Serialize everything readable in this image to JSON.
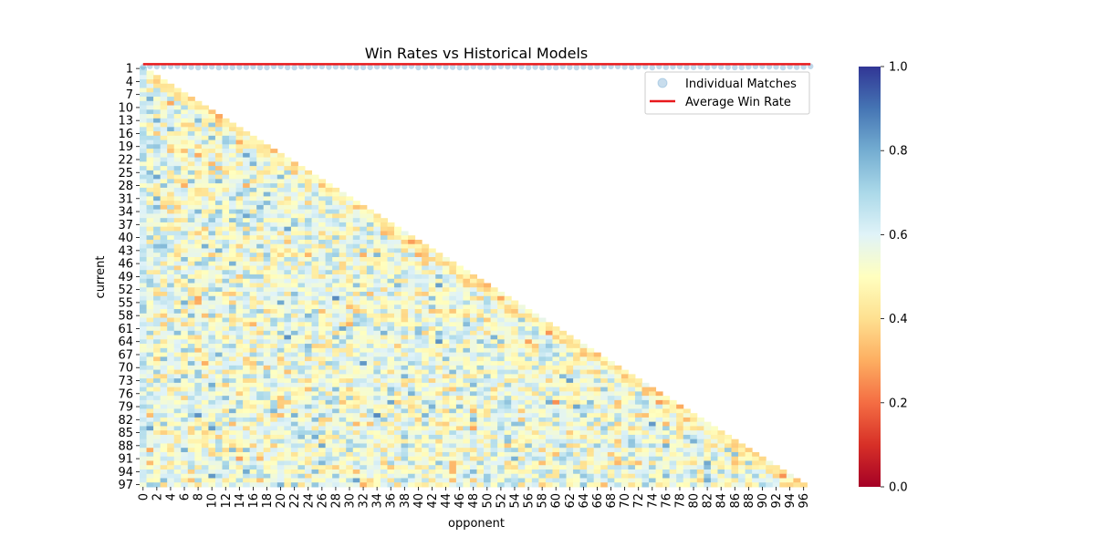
{
  "chart_data": {
    "type": "heatmap",
    "title": "Win Rates vs Historical Models",
    "xlabel": "opponent",
    "ylabel": "current",
    "mask": "lower-triangle",
    "rows": 98,
    "cols": 98,
    "row_labels": [
      "1",
      "4",
      "7",
      "10",
      "13",
      "16",
      "19",
      "22",
      "25",
      "28",
      "31",
      "34",
      "37",
      "40",
      "43",
      "46",
      "49",
      "52",
      "55",
      "58",
      "61",
      "64",
      "67",
      "70",
      "73",
      "76",
      "79",
      "82",
      "85",
      "88",
      "91",
      "94",
      "97"
    ],
    "col_labels": [
      "0",
      "2",
      "4",
      "6",
      "8",
      "10",
      "12",
      "14",
      "16",
      "18",
      "20",
      "22",
      "24",
      "26",
      "28",
      "30",
      "32",
      "34",
      "36",
      "38",
      "40",
      "42",
      "44",
      "46",
      "48",
      "50",
      "52",
      "54",
      "56",
      "58",
      "60",
      "62",
      "64",
      "66",
      "68",
      "70",
      "72",
      "74",
      "76",
      "78",
      "80",
      "82",
      "84",
      "86",
      "88",
      "90",
      "92",
      "94",
      "96"
    ],
    "colormap": "RdYlBu",
    "colorbar": {
      "range": [
        0.0,
        1.0
      ],
      "ticks": [
        "0.0",
        "0.2",
        "0.4",
        "0.6",
        "0.8",
        "1.0"
      ]
    },
    "row_zero_overlay": {
      "individual_matches": "near 1.0 for all opponents",
      "average_win_rate": 0.99
    },
    "legend": {
      "placement": "top-right",
      "entries": [
        {
          "label": "Individual Matches",
          "marker": "circle",
          "color": "#4a8fc4"
        },
        {
          "label": "Average Win Rate",
          "marker": "line",
          "color": "#e8191c"
        }
      ]
    }
  }
}
